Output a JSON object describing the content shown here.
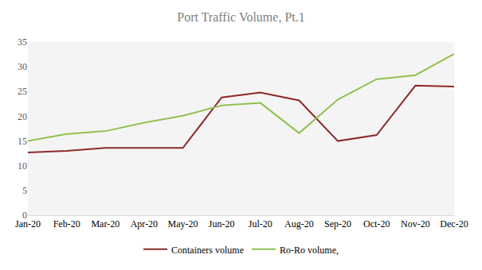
{
  "chart_data": {
    "type": "line",
    "title": "Port Traffic Volume, Pt.1",
    "categories": [
      "Jan-20",
      "Feb-20",
      "Mar-20",
      "Apr-20",
      "May-20",
      "Jun-20",
      "Jul-20",
      "Aug-20",
      "Sep-20",
      "Oct-20",
      "Nov-20",
      "Dec-20"
    ],
    "series": [
      {
        "name": "Containers volume",
        "color": "#8b2a2a",
        "values": [
          12.7,
          13.0,
          13.6,
          13.6,
          13.6,
          23.8,
          24.8,
          23.2,
          15.0,
          16.2,
          26.2,
          26.0
        ]
      },
      {
        "name": "Ro-Ro volume,",
        "color": "#92c050",
        "values": [
          15.0,
          16.4,
          17.0,
          18.7,
          20.1,
          22.2,
          22.7,
          16.6,
          23.4,
          27.5,
          28.3,
          32.6
        ]
      }
    ],
    "ylim": [
      0,
      35
    ],
    "yticks": [
      0,
      5,
      10,
      15,
      20,
      25,
      30,
      35
    ],
    "grid": false,
    "legend": "bottom"
  }
}
